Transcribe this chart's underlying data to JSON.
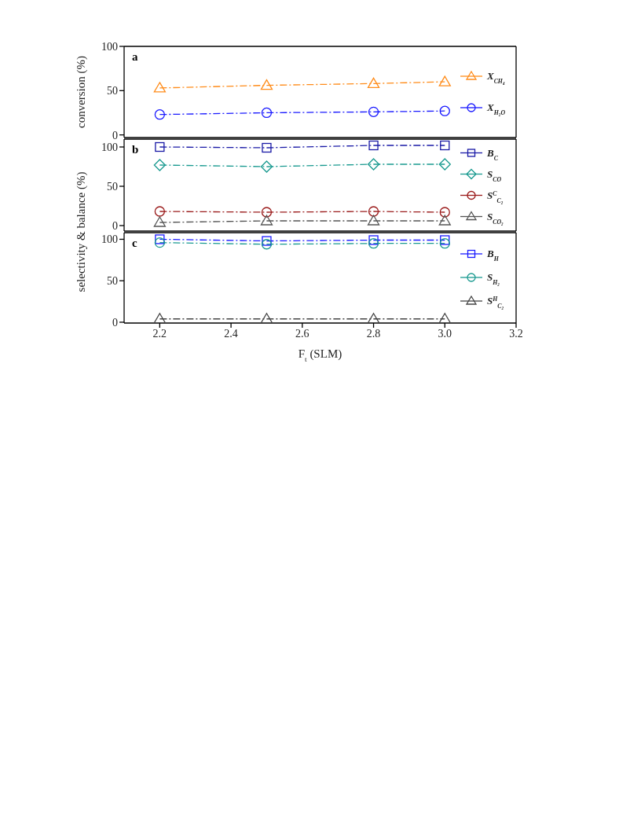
{
  "chart_data": [
    {
      "type": "line",
      "ylabel": "conversion (%)",
      "annotations": [
        "a"
      ],
      "x": [
        2.2,
        2.5,
        2.8,
        3.0
      ],
      "xlim": [
        2.1,
        3.2
      ],
      "xticks": [
        2.2,
        2.4,
        2.6,
        2.8,
        3.0,
        3.2
      ],
      "ylim": [
        -3,
        100
      ],
      "yticks": [
        0,
        50,
        100
      ],
      "tick_labels": "y",
      "legend": "right",
      "line_style": "dashed",
      "grid": false,
      "series": [
        {
          "name": "X$_{CH₄}$",
          "color": "#ff8c1a",
          "marker": "triangle",
          "values": [
            53,
            56,
            58,
            60
          ]
        },
        {
          "name": "X$_{H₂O}$",
          "color": "#1a1aff",
          "marker": "circle",
          "values": [
            23,
            25,
            26,
            27
          ]
        }
      ]
    },
    {
      "type": "line",
      "ylabel": "selectivity & balance (%)",
      "annotations": [
        "b"
      ],
      "x": [
        2.2,
        2.5,
        2.8,
        3.0
      ],
      "xlim": [
        2.1,
        3.2
      ],
      "xticks": [
        2.2,
        2.4,
        2.6,
        2.8,
        3.0,
        3.2
      ],
      "ylim": [
        -7,
        110
      ],
      "yticks": [
        0,
        50,
        100
      ],
      "tick_labels": "y",
      "legend": "right",
      "line_style": "dashed",
      "grid": false,
      "series": [
        {
          "name": "B$_{C}$",
          "color": "#1a1aa6",
          "marker": "square",
          "values": [
            100,
            99,
            102,
            102
          ]
        },
        {
          "name": "S$_{CO}$",
          "color": "#1a9a90",
          "marker": "diamond",
          "values": [
            77,
            75,
            78,
            78
          ]
        },
        {
          "name": "S$^{C}$$_{C₂}$",
          "color": "#9a1a1a",
          "marker": "circle",
          "values": [
            18,
            17,
            18,
            17
          ]
        },
        {
          "name": "S$_{CO₂}$",
          "color": "#555555",
          "marker": "triangle",
          "values": [
            4,
            6,
            6,
            6
          ]
        }
      ]
    },
    {
      "type": "line",
      "xlabel": "F$_{t}$ (SLM)",
      "annotations": [
        "c"
      ],
      "x": [
        2.2,
        2.5,
        2.8,
        3.0
      ],
      "xlim": [
        2.1,
        3.2
      ],
      "xticks": [
        2.2,
        2.4,
        2.6,
        2.8,
        {
          "value": 3,
          "label": "3.0"
        },
        3.2
      ],
      "ylim": [
        -1,
        108
      ],
      "yticks": [
        0,
        50,
        100
      ],
      "legend": "right",
      "line_style": "dashed",
      "grid": false,
      "series": [
        {
          "name": "B$_{H}$",
          "color": "#1a1aff",
          "marker": "square",
          "values": [
            100,
            98,
            99,
            99
          ]
        },
        {
          "name": "S$_{H₂}$",
          "color": "#1a9a90",
          "marker": "circle",
          "values": [
            96,
            94,
            95,
            95
          ]
        },
        {
          "name": "S$^{H}$$_{C₂}$",
          "color": "#444444",
          "marker": "triangle",
          "values": [
            4,
            4,
            4,
            4
          ]
        }
      ]
    }
  ]
}
